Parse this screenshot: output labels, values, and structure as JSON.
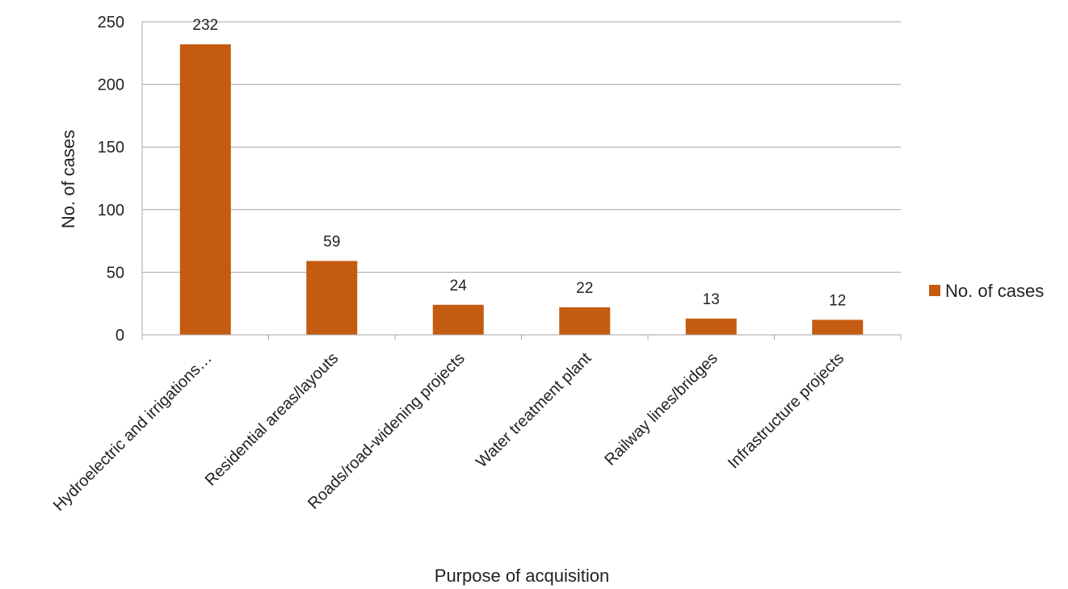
{
  "chart_data": {
    "type": "bar",
    "title": "",
    "xlabel": "Purpose of acquisition",
    "ylabel": "No. of cases",
    "categories": [
      "Hydroelectric and irrigations…",
      "Residential areas/layouts",
      "Roads/road-widening projects",
      "Water treatment plant",
      "Railway lines/bridges",
      "Infrastructure projects"
    ],
    "series": [
      {
        "name": "No. of cases",
        "values": [
          232,
          59,
          24,
          22,
          13,
          12
        ],
        "color": "#c55a11"
      }
    ],
    "ylim": [
      0,
      250
    ],
    "yticks": [
      "0",
      "50",
      "100",
      "150",
      "200",
      "250"
    ],
    "grid": true,
    "legend_position": "right",
    "data_labels": true
  }
}
